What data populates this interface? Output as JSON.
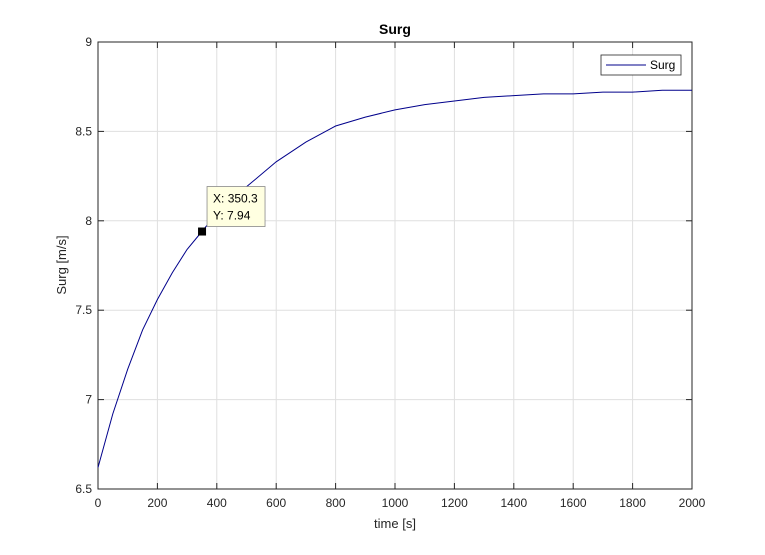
{
  "chart_data": {
    "type": "line",
    "title": "Surg",
    "xlabel": "time [s]",
    "ylabel": "Surg [m/s]",
    "xlim": [
      0,
      2000
    ],
    "ylim": [
      6.5,
      9
    ],
    "xticks": [
      0,
      200,
      400,
      600,
      800,
      1000,
      1200,
      1400,
      1600,
      1800,
      2000
    ],
    "xtick_labels": [
      "0",
      "200",
      "400",
      "600",
      "800",
      "1000",
      "1200",
      "1400",
      "1600",
      "1800",
      "2000"
    ],
    "yticks": [
      6.5,
      7,
      7.5,
      8,
      8.5,
      9
    ],
    "ytick_labels": [
      "6.5",
      "7",
      "7.5",
      "8",
      "8.5",
      "9"
    ],
    "grid": true,
    "legend_position": "top-right",
    "series": [
      {
        "name": "Surg",
        "color": "#00008b",
        "x": [
          0,
          50,
          100,
          150,
          200,
          250,
          300,
          350,
          400,
          450,
          500,
          600,
          700,
          800,
          900,
          1000,
          1100,
          1200,
          1300,
          1400,
          1500,
          1600,
          1700,
          1800,
          1900,
          2000
        ],
        "y": [
          6.62,
          6.92,
          7.17,
          7.39,
          7.56,
          7.71,
          7.84,
          7.94,
          8.04,
          8.12,
          8.19,
          8.33,
          8.44,
          8.53,
          8.58,
          8.62,
          8.65,
          8.67,
          8.69,
          8.7,
          8.71,
          8.71,
          8.72,
          8.72,
          8.73,
          8.73
        ]
      }
    ],
    "datatip": {
      "x": 350.3,
      "y": 7.94,
      "x_text": "X: 350.3",
      "y_text": "Y: 7.94"
    }
  }
}
